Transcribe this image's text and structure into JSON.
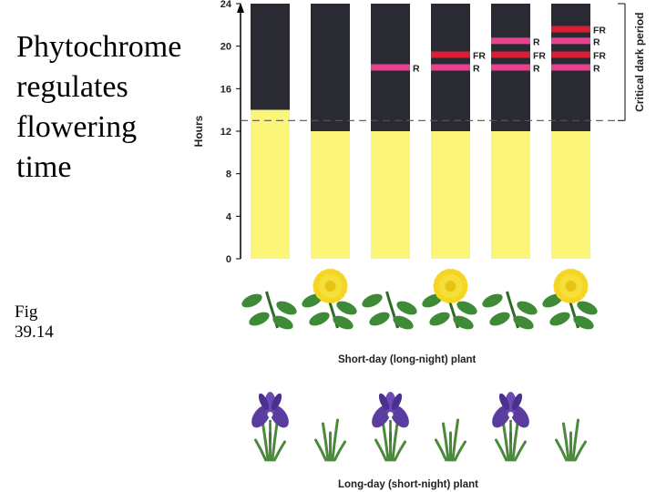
{
  "title": "Phytochrome\nregulates\nflowering\ntime",
  "figure_label": "Fig\n39.14",
  "y_axis": {
    "label": "Hours",
    "ticks": [
      0,
      4,
      8,
      12,
      16,
      20,
      24
    ],
    "min": 0,
    "max": 24
  },
  "critical_dark_period": {
    "label": "Critical dark period",
    "hour": 13
  },
  "colors": {
    "dark": "#2a2a33",
    "light": "#fbf67a",
    "R": "#e8418f",
    "FR": "#d81f36"
  },
  "bars": [
    {
      "light_hours": 14,
      "flashes": []
    },
    {
      "light_hours": 12,
      "flashes": []
    },
    {
      "light_hours": 12,
      "flashes": [
        {
          "hour": 18,
          "type": "R",
          "label": "R"
        }
      ]
    },
    {
      "light_hours": 12,
      "flashes": [
        {
          "hour": 18,
          "type": "R",
          "label": "R"
        },
        {
          "hour": 19.2,
          "type": "FR",
          "label": "FR"
        }
      ]
    },
    {
      "light_hours": 12,
      "flashes": [
        {
          "hour": 18,
          "type": "R",
          "label": "R"
        },
        {
          "hour": 19.2,
          "type": "FR",
          "label": "FR"
        },
        {
          "hour": 20.5,
          "type": "R",
          "label": "R"
        }
      ]
    },
    {
      "light_hours": 12,
      "flashes": [
        {
          "hour": 18,
          "type": "R",
          "label": "R"
        },
        {
          "hour": 19.2,
          "type": "FR",
          "label": "FR"
        },
        {
          "hour": 20.5,
          "type": "R",
          "label": "R"
        },
        {
          "hour": 21.6,
          "type": "FR",
          "label": "FR"
        }
      ]
    }
  ],
  "short_day_plant": {
    "caption": "Short-day (long-night) plant",
    "flowering": [
      false,
      true,
      false,
      true,
      false,
      true
    ]
  },
  "long_day_plant": {
    "caption": "Long-day (short-night) plant",
    "flowering": [
      true,
      false,
      true,
      false,
      true,
      false
    ]
  }
}
